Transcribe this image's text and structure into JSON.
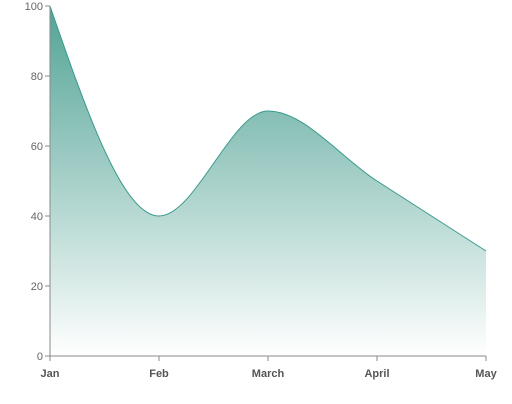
{
  "chart_data": {
    "type": "area",
    "categories": [
      "Jan",
      "Feb",
      "March",
      "April",
      "May"
    ],
    "values": [
      100,
      40,
      70,
      50,
      30
    ],
    "ylim": [
      0,
      100
    ],
    "yticks": [
      0,
      20,
      40,
      60,
      80,
      100
    ],
    "grid": false,
    "legend": "none",
    "colors": {
      "line": "#3a9a8c",
      "fill_top": "#4a9f90",
      "fill_bottom": "#ffffff",
      "axis": "#8a8a8a",
      "tick_text": "#666666"
    }
  }
}
